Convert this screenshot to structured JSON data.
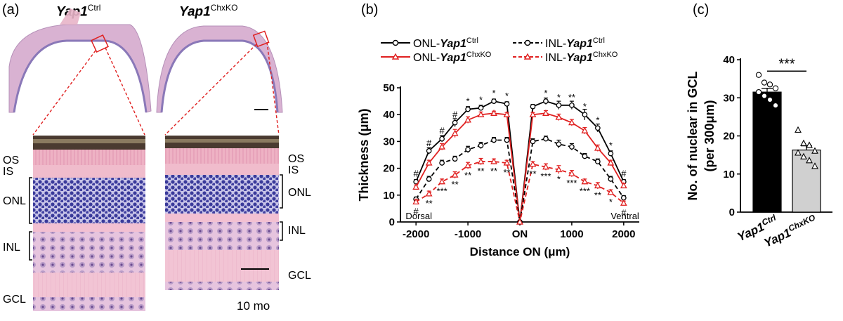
{
  "panel_a": {
    "label": "(a)",
    "genotype_ctrl": {
      "name": "Yap1",
      "sup": "Ctrl"
    },
    "genotype_ko": {
      "name": "Yap1",
      "sup": "ChxKO"
    },
    "layers_left": [
      "OS",
      "IS",
      "ONL",
      "INL",
      "GCL"
    ],
    "layers_right": [
      "OS",
      "IS",
      "ONL",
      "INL",
      "GCL"
    ],
    "age": "10 mo"
  },
  "panel_b": {
    "label": "(b)",
    "legend": [
      {
        "layer": "ONL-",
        "genotype": "Yap1",
        "sup": "Ctrl",
        "color": "#000000",
        "dash": false,
        "marker": "circle"
      },
      {
        "layer": "ONL-",
        "genotype": "Yap1",
        "sup": "ChxKO",
        "color": "#e02020",
        "dash": false,
        "marker": "triangle"
      },
      {
        "layer": "INL-",
        "genotype": "Yap1",
        "sup": "Ctrl",
        "color": "#000000",
        "dash": true,
        "marker": "circle"
      },
      {
        "layer": "INL-",
        "genotype": "Yap1",
        "sup": "ChxKO",
        "color": "#e02020",
        "dash": true,
        "marker": "triangle"
      }
    ],
    "dorsal_label": "Dorsal",
    "ventral_label": "Ventral"
  },
  "panel_c": {
    "label": "(c)",
    "significance": "***"
  },
  "chart_data": [
    {
      "type": "line",
      "xlabel": "Distance ON (μm)",
      "ylabel": "Thickness (μm)",
      "xlim": [
        -2300,
        2300
      ],
      "ylim": [
        0,
        50
      ],
      "xticks": [
        -2000,
        -1000,
        0,
        1000,
        2000
      ],
      "xtick_labels": [
        "-2000",
        "-1000",
        "ON",
        "1000",
        "2000"
      ],
      "yticks": [
        0,
        10,
        20,
        30,
        40,
        50
      ],
      "x": [
        -2000,
        -1750,
        -1500,
        -1250,
        -1000,
        -750,
        -500,
        -250,
        0,
        250,
        500,
        750,
        1000,
        1250,
        1500,
        1750,
        2000
      ],
      "series": [
        {
          "name": "ONL-Yap1Ctrl",
          "color": "#000000",
          "dash": false,
          "marker": "circle",
          "values": [
            15,
            26.5,
            31,
            37,
            42,
            42.5,
            45,
            44,
            0,
            43,
            45,
            43.5,
            43.5,
            40,
            35,
            25.5,
            15
          ],
          "errors": [
            0.8,
            1.2,
            1.2,
            1.5,
            1.0,
            1.0,
            0.8,
            0.8,
            0,
            0.8,
            1.2,
            1.5,
            1.5,
            2.0,
            1.5,
            1.0,
            0.8
          ]
        },
        {
          "name": "ONL-Yap1ChxKO",
          "color": "#e02020",
          "dash": false,
          "marker": "triangle",
          "values": [
            13,
            22,
            28,
            33,
            38,
            40,
            40.5,
            40,
            0,
            40,
            40.5,
            39,
            37,
            34,
            27.5,
            22,
            13.5
          ],
          "errors": [
            0.8,
            1.0,
            1.2,
            1.5,
            1.2,
            1.0,
            0.8,
            0.8,
            0,
            0.8,
            1.0,
            1.2,
            1.2,
            1.2,
            1.2,
            1.0,
            0.8
          ]
        },
        {
          "name": "INL-Yap1Ctrl",
          "color": "#000000",
          "dash": true,
          "marker": "circle",
          "values": [
            8.5,
            16,
            22,
            23.5,
            27,
            28.5,
            30.5,
            30.5,
            0,
            30,
            31,
            29,
            28,
            24.5,
            22.5,
            16,
            9
          ],
          "errors": [
            0.8,
            1.0,
            1.0,
            1.0,
            1.2,
            1.2,
            1.0,
            1.0,
            0,
            1.0,
            1.0,
            1.5,
            1.2,
            1.0,
            1.0,
            1.0,
            0.8
          ]
        },
        {
          "name": "INL-Yap1ChxKO",
          "color": "#e02020",
          "dash": true,
          "marker": "triangle",
          "values": [
            7.5,
            10.5,
            15,
            17.5,
            21,
            22.5,
            22.5,
            22,
            0,
            21.5,
            20.5,
            19.5,
            18,
            15,
            13.5,
            11,
            7
          ],
          "errors": [
            0.8,
            1.0,
            1.0,
            1.2,
            1.2,
            1.2,
            1.0,
            1.0,
            0,
            1.0,
            1.2,
            1.5,
            1.2,
            1.0,
            1.2,
            1.0,
            0.8
          ]
        }
      ],
      "annotations_upper": [
        "#",
        "#",
        "#",
        "#",
        "*",
        "*",
        "*",
        "*",
        "",
        "",
        "*",
        "*",
        "**",
        "*",
        "*",
        "*",
        "#"
      ],
      "annotations_lower": [
        "#",
        "**",
        "***",
        "**",
        "**",
        "**",
        "**",
        "**",
        "",
        "**",
        "***",
        "*",
        "***",
        "***",
        "**",
        "*",
        "#"
      ]
    },
    {
      "type": "bar",
      "categories": [
        "Yap1Ctrl",
        "Yap1ChxKO"
      ],
      "category_names": [
        "Yap1",
        "Yap1"
      ],
      "category_sups": [
        "Ctrl",
        "ChxKO"
      ],
      "values": [
        31.5,
        16.3
      ],
      "errors": [
        1.0,
        1.1
      ],
      "colors": [
        "#000000",
        "#d0d0d0"
      ],
      "ylabel": "No. of nuclear in GCL",
      "ylabel2": "(per 300μm)",
      "ylim": [
        0,
        40
      ],
      "yticks": [
        0,
        10,
        20,
        30,
        40
      ],
      "points": [
        [
          36,
          34,
          33.5,
          32.5,
          31.5,
          30.5,
          29.5,
          28
        ],
        [
          21.5,
          18,
          17.5,
          16,
          15.5,
          14.5,
          13.5,
          12
        ]
      ]
    }
  ]
}
